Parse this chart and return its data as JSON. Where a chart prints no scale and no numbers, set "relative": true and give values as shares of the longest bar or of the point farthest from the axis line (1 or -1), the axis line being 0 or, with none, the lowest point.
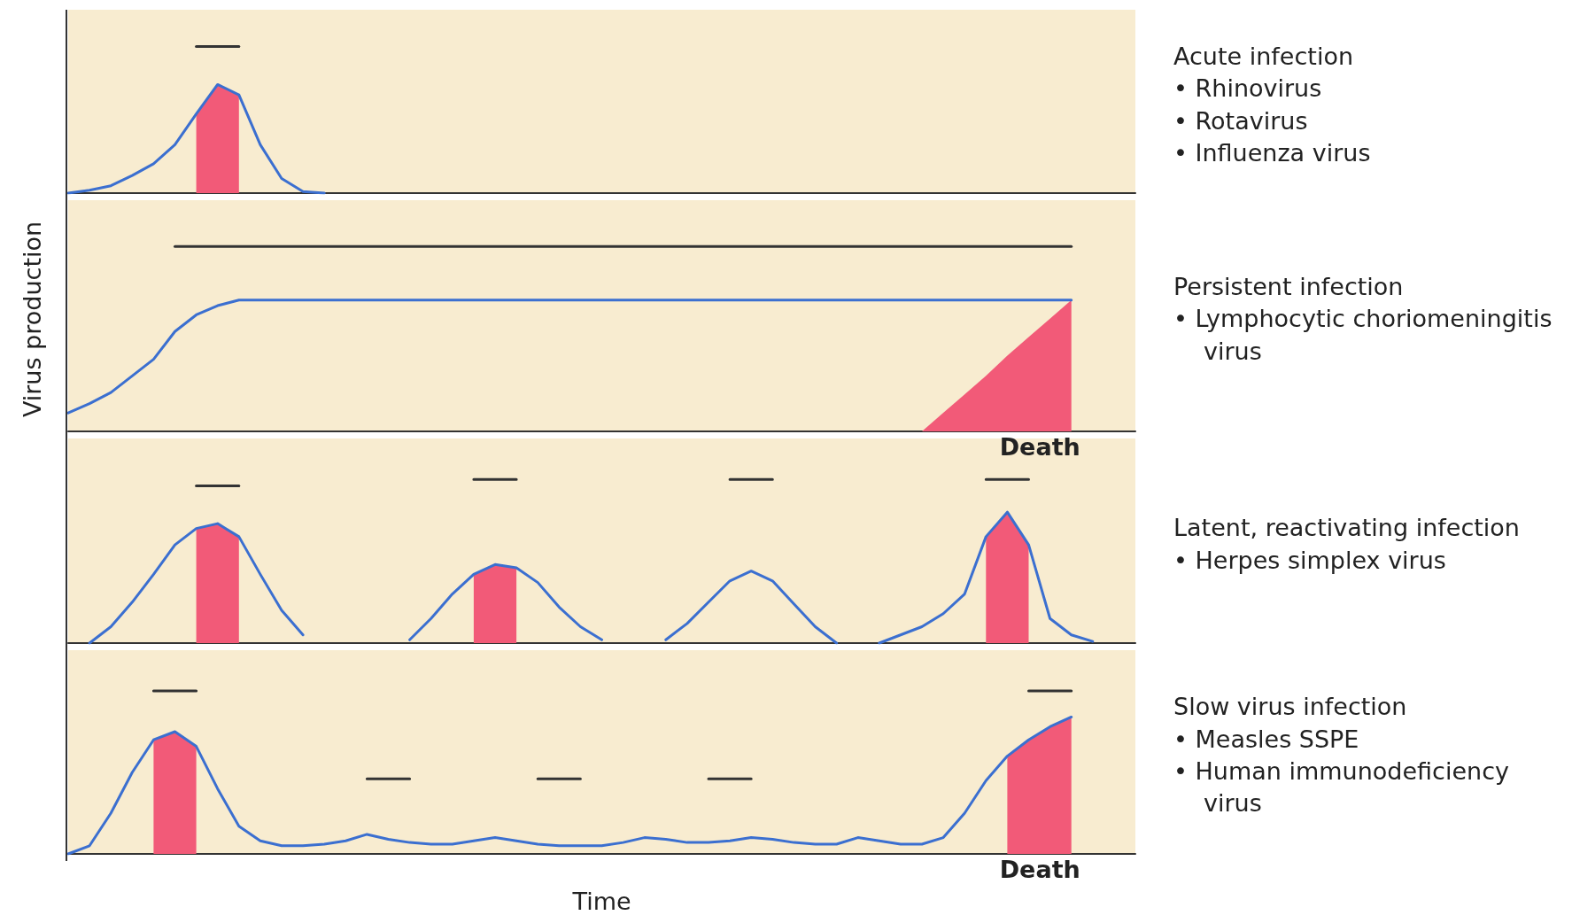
{
  "chart_data": [
    {
      "type": "line",
      "annotations": [
        "Acute infection",
        "• Rhinovirus",
        "• Rotavirus",
        "• Influenza virus"
      ],
      "relative": true,
      "marker": "none",
      "line_style": "solid",
      "categories": [
        null,
        null,
        null,
        null,
        null,
        null,
        null,
        null,
        null,
        null,
        null,
        null,
        null,
        null,
        null,
        null,
        null,
        null,
        null,
        null,
        null,
        null,
        null,
        null,
        null,
        null,
        null,
        null,
        null,
        null,
        null,
        null,
        null,
        null,
        null,
        null,
        null,
        null,
        null,
        null,
        null,
        null,
        null,
        null,
        null,
        null,
        null,
        null,
        null,
        null,
        null
      ],
      "series": [
        {
          "type": "area",
          "color": "#f25a78",
          "values": [
            null,
            null,
            null,
            null,
            null,
            null,
            0.54,
            0.74,
            0.67,
            null,
            null,
            null,
            null,
            null,
            null,
            null,
            null,
            null,
            null,
            null,
            null,
            null,
            null,
            null,
            null,
            null,
            null,
            null,
            null,
            null,
            null,
            null,
            null,
            null,
            null,
            null,
            null,
            null,
            null,
            null,
            null,
            null,
            null,
            null,
            null,
            null,
            null,
            null,
            null,
            null,
            null
          ]
        },
        {
          "color": "#3b6fd0",
          "values": [
            0,
            0.02,
            0.05,
            0.12,
            0.2,
            0.33,
            0.54,
            0.74,
            0.67,
            0.33,
            0.1,
            0.01,
            0,
            null,
            null,
            null,
            null,
            null,
            null,
            null,
            null,
            null,
            null,
            null,
            null,
            null,
            null,
            null,
            null,
            null,
            null,
            null,
            null,
            null,
            null,
            null,
            null,
            null,
            null,
            null,
            null,
            null,
            null,
            null,
            null,
            null,
            null,
            null,
            null,
            null,
            null
          ]
        },
        {
          "color": "#333333",
          "values": [
            null,
            null,
            null,
            null,
            null,
            null,
            1,
            1,
            1,
            null,
            null,
            null,
            null,
            null,
            null,
            null,
            null,
            null,
            null,
            null,
            null,
            null,
            null,
            null,
            null,
            null,
            null,
            null,
            null,
            null,
            null,
            null,
            null,
            null,
            null,
            null,
            null,
            null,
            null,
            null,
            null,
            null,
            null,
            null,
            null,
            null,
            null,
            null,
            null,
            null,
            null
          ]
        }
      ]
    },
    {
      "type": "line",
      "ylabel": "Virus production",
      "annotations": [
        "Persistent infection",
        "• Lymphocytic choriomeningitis virus",
        {
          "text": "Death",
          "y": 0
        }
      ],
      "relative": true,
      "marker": "none",
      "line_style": "solid",
      "categories": [
        null,
        null,
        null,
        null,
        null,
        null,
        null,
        null,
        null,
        null,
        null,
        null,
        null,
        null,
        null,
        null,
        null,
        null,
        null,
        null,
        null,
        null,
        null,
        null,
        null,
        null,
        null,
        null,
        null,
        null,
        null,
        null,
        null,
        null,
        null,
        null,
        null,
        null,
        null,
        null,
        null,
        null,
        null,
        null,
        null,
        null,
        null,
        null,
        null,
        null,
        null
      ],
      "series": [
        {
          "type": "area",
          "color": "#f25a78",
          "values": [
            null,
            null,
            null,
            null,
            null,
            null,
            null,
            null,
            null,
            null,
            null,
            null,
            null,
            null,
            null,
            null,
            null,
            null,
            null,
            null,
            null,
            null,
            null,
            null,
            null,
            null,
            null,
            null,
            null,
            null,
            null,
            null,
            null,
            null,
            null,
            null,
            null,
            null,
            null,
            null,
            0,
            0.1,
            0.2,
            0.3,
            0.41,
            0.51,
            0.61,
            0.71,
            null,
            null,
            null
          ]
        },
        {
          "color": "#3b6fd0",
          "values": [
            0.1,
            0.15,
            0.21,
            0.3,
            0.39,
            0.54,
            0.63,
            0.68,
            0.71,
            0.71,
            0.71,
            0.71,
            0.71,
            0.71,
            0.71,
            0.71,
            0.71,
            0.71,
            0.71,
            0.71,
            0.71,
            0.71,
            0.71,
            0.71,
            0.71,
            0.71,
            0.71,
            0.71,
            0.71,
            0.71,
            0.71,
            0.71,
            0.71,
            0.71,
            0.71,
            0.71,
            0.71,
            0.71,
            0.71,
            0.71,
            0.71,
            0.71,
            0.71,
            0.71,
            0.71,
            0.71,
            0.71,
            0.71,
            null,
            null,
            null
          ]
        },
        {
          "color": "#333333",
          "values": [
            null,
            null,
            null,
            null,
            null,
            1,
            1,
            1,
            1,
            1,
            1,
            1,
            1,
            1,
            1,
            1,
            1,
            1,
            1,
            1,
            1,
            1,
            1,
            1,
            1,
            1,
            1,
            1,
            1,
            1,
            1,
            1,
            1,
            1,
            1,
            1,
            1,
            1,
            1,
            1,
            1,
            1,
            1,
            1,
            1,
            1,
            1,
            1,
            null,
            null,
            null
          ]
        }
      ]
    },
    {
      "type": "line",
      "annotations": [
        "Latent, reactivating infection",
        "• Herpes simplex virus"
      ],
      "relative": true,
      "marker": "none",
      "line_style": "solid",
      "categories": [
        null,
        null,
        null,
        null,
        null,
        null,
        null,
        null,
        null,
        null,
        null,
        null,
        null,
        null,
        null,
        null,
        null,
        null,
        null,
        null,
        null,
        null,
        null,
        null,
        null,
        null,
        null,
        null,
        null,
        null,
        null,
        null,
        null,
        null,
        null,
        null,
        null,
        null,
        null,
        null,
        null,
        null,
        null,
        null,
        null,
        null,
        null,
        null,
        null,
        null,
        null
      ],
      "series": [
        {
          "type": "area",
          "color": "#f25a78",
          "values": [
            null,
            null,
            null,
            null,
            null,
            null,
            0.7,
            0.73,
            0.65,
            null,
            null,
            null,
            null,
            null,
            null,
            null,
            null,
            null,
            null,
            0.42,
            0.48,
            0.46,
            null,
            null,
            null,
            null,
            null,
            null,
            null,
            null,
            null,
            null,
            null,
            null,
            null,
            null,
            null,
            null,
            null,
            null,
            null,
            null,
            null,
            0.65,
            0.8,
            0.6,
            null,
            null,
            null,
            null,
            null
          ]
        },
        {
          "color": "#3b6fd0",
          "values": [
            null,
            0,
            0.1,
            0.25,
            0.42,
            0.6,
            0.7,
            0.73,
            0.65,
            0.42,
            0.2,
            0.05,
            null,
            null,
            null,
            null,
            0.02,
            0.15,
            0.3,
            0.42,
            0.48,
            0.46,
            0.37,
            0.22,
            0.1,
            0.02,
            null,
            null,
            0.02,
            0.12,
            0.25,
            0.38,
            0.44,
            0.38,
            0.24,
            0.1,
            0,
            null,
            0,
            0.05,
            0.1,
            0.18,
            0.3,
            0.65,
            0.8,
            0.6,
            0.15,
            0.05,
            0.01,
            null,
            null
          ]
        },
        {
          "color": "#333333",
          "values": [
            null,
            null,
            null,
            null,
            null,
            null,
            0.96,
            0.96,
            0.96,
            null,
            null,
            null,
            null,
            null,
            null,
            null,
            null,
            null,
            null,
            null,
            null,
            null,
            null,
            null,
            null,
            null,
            null,
            null,
            null,
            null,
            null,
            null,
            null,
            null,
            null,
            null,
            null,
            null,
            null,
            null,
            null,
            null,
            null,
            null,
            null,
            null,
            null,
            null,
            null,
            null,
            null
          ]
        },
        {
          "color": "#333333",
          "values": [
            null,
            null,
            null,
            null,
            null,
            null,
            null,
            null,
            null,
            null,
            null,
            null,
            null,
            null,
            null,
            null,
            null,
            null,
            null,
            1,
            1,
            1,
            null,
            null,
            null,
            null,
            null,
            null,
            null,
            null,
            null,
            1,
            1,
            1,
            null,
            null,
            null,
            null,
            null,
            null,
            null,
            null,
            null,
            1,
            1,
            1,
            null,
            null,
            null,
            null,
            null
          ]
        }
      ]
    },
    {
      "type": "line",
      "xlabel": "Time",
      "annotations": [
        "Slow virus infection",
        "• Measles SSPE",
        "• Human immunodeficiency virus",
        {
          "text": "Death",
          "y": 0
        }
      ],
      "relative": true,
      "marker": "none",
      "line_style": "solid",
      "categories": [
        null,
        null,
        null,
        null,
        null,
        null,
        null,
        null,
        null,
        null,
        null,
        null,
        null,
        null,
        null,
        null,
        null,
        null,
        null,
        null,
        null,
        null,
        null,
        null,
        null,
        null,
        null,
        null,
        null,
        null,
        null,
        null,
        null,
        null,
        null,
        null,
        null,
        null,
        null,
        null,
        null,
        null,
        null,
        null,
        null,
        null,
        null,
        null,
        null,
        null,
        null
      ],
      "series": [
        {
          "type": "area",
          "color": "#f25a78",
          "values": [
            null,
            null,
            null,
            null,
            0.7,
            0.75,
            0.66,
            null,
            null,
            null,
            null,
            null,
            null,
            null,
            null,
            null,
            null,
            null,
            null,
            null,
            null,
            null,
            null,
            null,
            null,
            null,
            null,
            null,
            null,
            null,
            null,
            null,
            null,
            null,
            null,
            null,
            null,
            null,
            null,
            null,
            null,
            null,
            null,
            null,
            0.6,
            0.7,
            0.78,
            0.84,
            null,
            null,
            null
          ]
        },
        {
          "color": "#3b6fd0",
          "values": [
            0,
            0.05,
            0.25,
            0.5,
            0.7,
            0.75,
            0.66,
            0.4,
            0.17,
            0.08,
            0.05,
            0.05,
            0.06,
            0.08,
            0.12,
            0.09,
            0.07,
            0.06,
            0.06,
            0.08,
            0.1,
            0.08,
            0.06,
            0.05,
            0.05,
            0.05,
            0.07,
            0.1,
            0.09,
            0.07,
            0.07,
            0.08,
            0.1,
            0.09,
            0.07,
            0.06,
            0.06,
            0.1,
            0.08,
            0.06,
            0.06,
            0.1,
            0.25,
            0.45,
            0.6,
            0.7,
            0.78,
            0.84,
            null,
            null,
            null
          ]
        },
        {
          "color": "#333333",
          "values": [
            null,
            null,
            null,
            null,
            1,
            1,
            1,
            null,
            null,
            null,
            null,
            null,
            null,
            null,
            null,
            null,
            null,
            null,
            null,
            null,
            null,
            null,
            null,
            null,
            null,
            null,
            null,
            null,
            null,
            null,
            null,
            null,
            null,
            null,
            null,
            null,
            null,
            null,
            null,
            null,
            null,
            null,
            null,
            null,
            null,
            1,
            1,
            1,
            null,
            null,
            null
          ]
        },
        {
          "color": "#333333",
          "values": [
            null,
            null,
            null,
            null,
            null,
            null,
            null,
            null,
            null,
            null,
            null,
            null,
            null,
            null,
            0.46,
            0.46,
            0.46,
            null,
            null,
            null,
            null,
            null,
            0.46,
            0.46,
            0.46,
            null,
            null,
            null,
            null,
            null,
            0.46,
            0.46,
            0.46,
            null,
            null,
            null,
            null,
            null,
            null,
            null,
            null,
            null,
            null,
            null,
            null,
            null,
            null,
            null,
            null,
            null,
            null
          ]
        }
      ]
    }
  ]
}
